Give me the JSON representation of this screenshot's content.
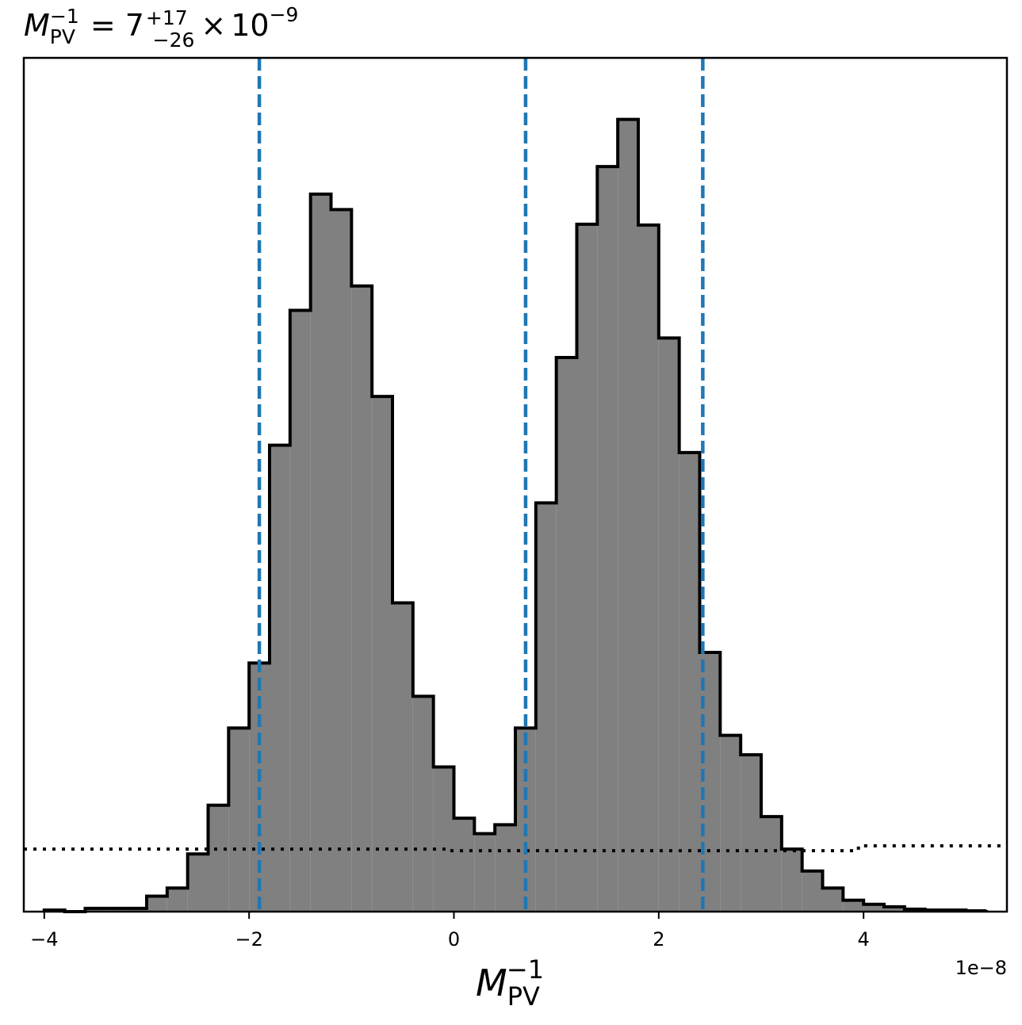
{
  "chart_data": {
    "type": "histogram",
    "title": {
      "variable": "M",
      "subscript": "PV",
      "superscript": "−1",
      "equals": "=",
      "value": "7",
      "upper": "+17",
      "lower": "−26",
      "times": "×",
      "base": "10",
      "exponent": "−9"
    },
    "xlabel": {
      "variable": "M",
      "subscript": "PV",
      "superscript": "−1"
    },
    "offset_label": "1e−8",
    "xlim": [
      -4.2,
      5.4
    ],
    "ylim": [
      0,
      1.0
    ],
    "x_ticks": [
      -4,
      -2,
      0,
      2,
      4
    ],
    "x_tick_labels": [
      "−4",
      "−2",
      "0",
      "2",
      "4"
    ],
    "bin_edges": [
      -4.0,
      -3.8,
      -3.6,
      -3.4,
      -3.2,
      -3.0,
      -2.8,
      -2.6,
      -2.4,
      -2.2,
      -2.0,
      -1.8,
      -1.6,
      -1.4,
      -1.2,
      -1.0,
      -0.8,
      -0.6,
      -0.4,
      -0.2,
      0.0,
      0.2,
      0.4,
      0.6,
      0.8,
      1.0,
      1.2,
      1.4,
      1.6,
      1.8,
      2.0,
      2.2,
      2.4,
      2.6,
      2.8,
      3.0,
      3.2,
      3.4,
      3.6,
      3.8,
      4.0,
      4.2,
      4.4,
      4.6,
      4.8,
      5.0,
      5.2
    ],
    "counts": [
      0.002,
      0.0,
      0.004,
      0.004,
      0.004,
      0.019,
      0.029,
      0.071,
      0.131,
      0.226,
      0.306,
      0.574,
      0.74,
      0.883,
      0.864,
      0.77,
      0.634,
      0.38,
      0.265,
      0.178,
      0.115,
      0.096,
      0.107,
      0.226,
      0.503,
      0.682,
      0.846,
      0.917,
      0.975,
      0.845,
      0.706,
      0.565,
      0.319,
      0.217,
      0.193,
      0.117,
      0.077,
      0.05,
      0.029,
      0.014,
      0.009,
      0.006,
      0.003,
      0.002,
      0.002,
      0.001,
      0.002
    ],
    "quantile_lines": [
      -1.9,
      0.7,
      2.43
    ],
    "prior_line": {
      "x": [
        -4.2,
        -0.08,
        -0.08,
        3.95,
        3.95,
        5.4
      ],
      "y": [
        0.077,
        0.077,
        0.075,
        0.075,
        0.081,
        0.081
      ]
    },
    "colors": {
      "fill": "#808080",
      "edge": "#000000",
      "quantile": "#1f77b4",
      "prior": "#000000"
    },
    "grid": false,
    "legend": "none"
  }
}
